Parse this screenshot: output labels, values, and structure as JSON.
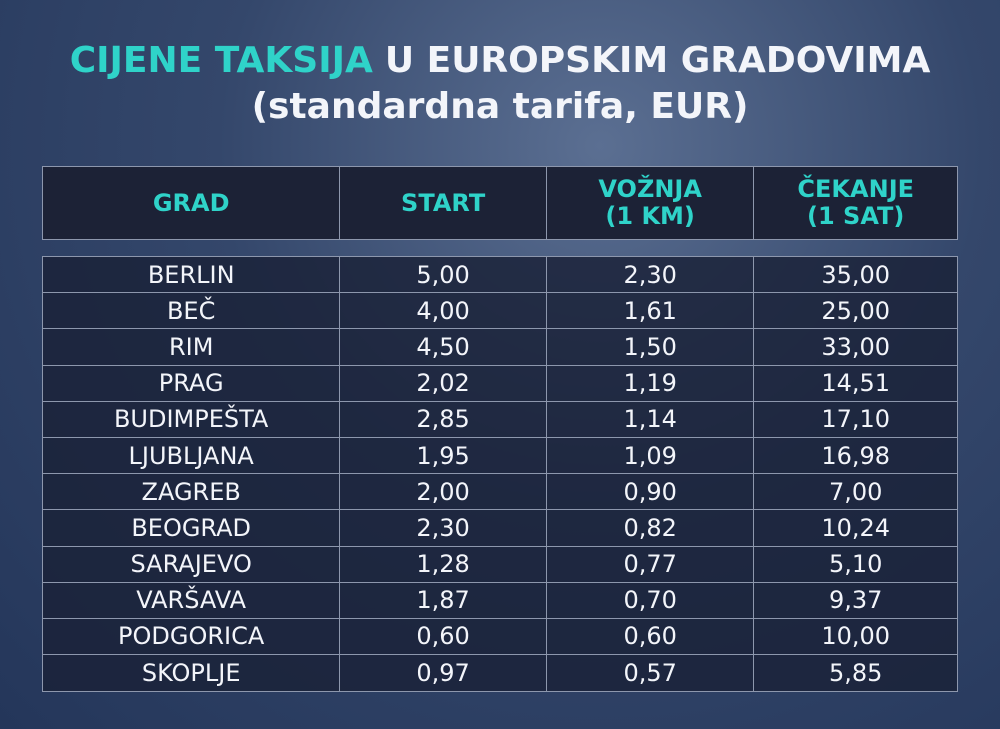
{
  "header": {
    "title_highlight": "CIJENE TAKSIJA",
    "title_rest": "U EUROPSKIM GRADOVIMA",
    "subtitle": "(standardna tarifa, EUR)"
  },
  "table": {
    "columns": [
      [
        "GRAD"
      ],
      [
        "START"
      ],
      [
        "VOŽNJA",
        "(1 KM)"
      ],
      [
        "ČEKANJE",
        "(1 SAT)"
      ]
    ],
    "rows": [
      [
        "BERLIN",
        "5,00",
        "2,30",
        "35,00"
      ],
      [
        "BEČ",
        "4,00",
        "1,61",
        "25,00"
      ],
      [
        "RIM",
        "4,50",
        "1,50",
        "33,00"
      ],
      [
        "PRAG",
        "2,02",
        "1,19",
        "14,51"
      ],
      [
        "BUDIMPEŠTA",
        "2,85",
        "1,14",
        "17,10"
      ],
      [
        "LJUBLJANA",
        "1,95",
        "1,09",
        "16,98"
      ],
      [
        "ZAGREB",
        "2,00",
        "0,90",
        "7,00"
      ],
      [
        "BEOGRAD",
        "2,30",
        "0,82",
        "10,24"
      ],
      [
        "SARAJEVO",
        "1,28",
        "0,77",
        "5,10"
      ],
      [
        "VARŠAVA",
        "1,87",
        "0,70",
        "9,37"
      ],
      [
        "PODGORICA",
        "0,60",
        "0,60",
        "10,00"
      ],
      [
        "SKOPLJE",
        "0,97",
        "0,57",
        "5,85"
      ]
    ]
  }
}
